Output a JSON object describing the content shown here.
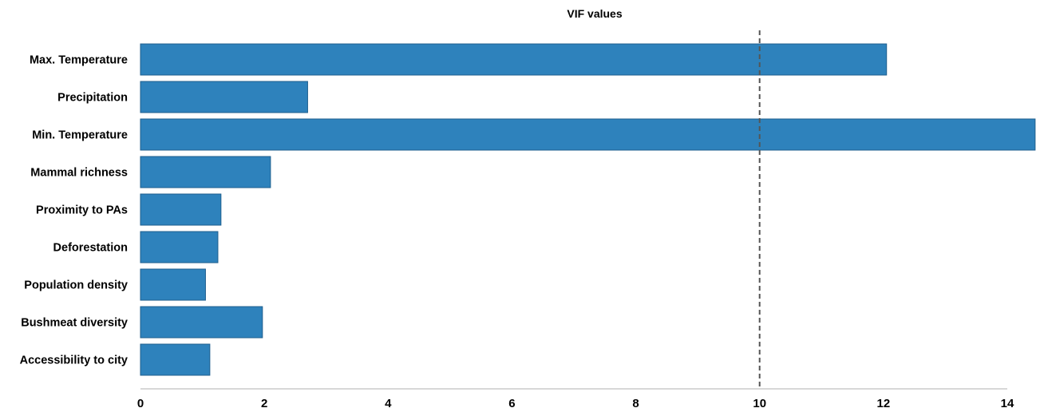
{
  "chart_data": {
    "type": "bar",
    "orientation": "horizontal",
    "title": "VIF values",
    "xlabel": "",
    "ylabel": "",
    "categories": [
      "Max. Temperature",
      "Precipitation",
      "Min. Temperature",
      "Mammal richness",
      "Proximity to PAs",
      "Deforestation",
      "Population density",
      "Bushmeat diversity",
      "Accessibility to city"
    ],
    "values": [
      12.05,
      2.7,
      14.45,
      2.1,
      1.3,
      1.25,
      1.05,
      1.97,
      1.12
    ],
    "xlim": [
      0,
      14
    ],
    "xticks": [
      "0",
      "2",
      "4",
      "6",
      "8",
      "10",
      "12",
      "14"
    ],
    "reference_line": {
      "value": 10,
      "style": "dashed"
    },
    "grid": false,
    "bar_color": "#2e82bc",
    "bar_edge_color": "#1f5f8e",
    "axis_color": "#d8d8d8",
    "reference_line_color": "#555555"
  }
}
